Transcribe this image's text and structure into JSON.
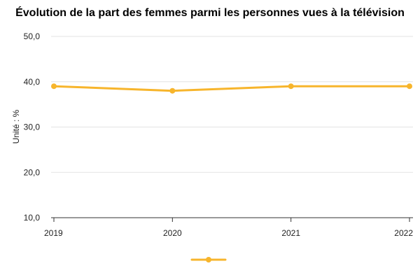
{
  "chart_data": {
    "type": "line",
    "title": "Évolution de la part des femmes parmi les personnes vues à la télévision",
    "ylabel": "Unité : %",
    "xlabel": "",
    "x": [
      "2019",
      "2020",
      "2021",
      "2022"
    ],
    "ylim": [
      10,
      50
    ],
    "yticks": [
      "10,0",
      "20,0",
      "30,0",
      "40,0",
      "50,0"
    ],
    "ytick_values": [
      10,
      20,
      30,
      40,
      50
    ],
    "series": [
      {
        "values": [
          39,
          38,
          39,
          39
        ],
        "color": "#F7B52C"
      }
    ],
    "grid": true,
    "legend": "bottom"
  }
}
